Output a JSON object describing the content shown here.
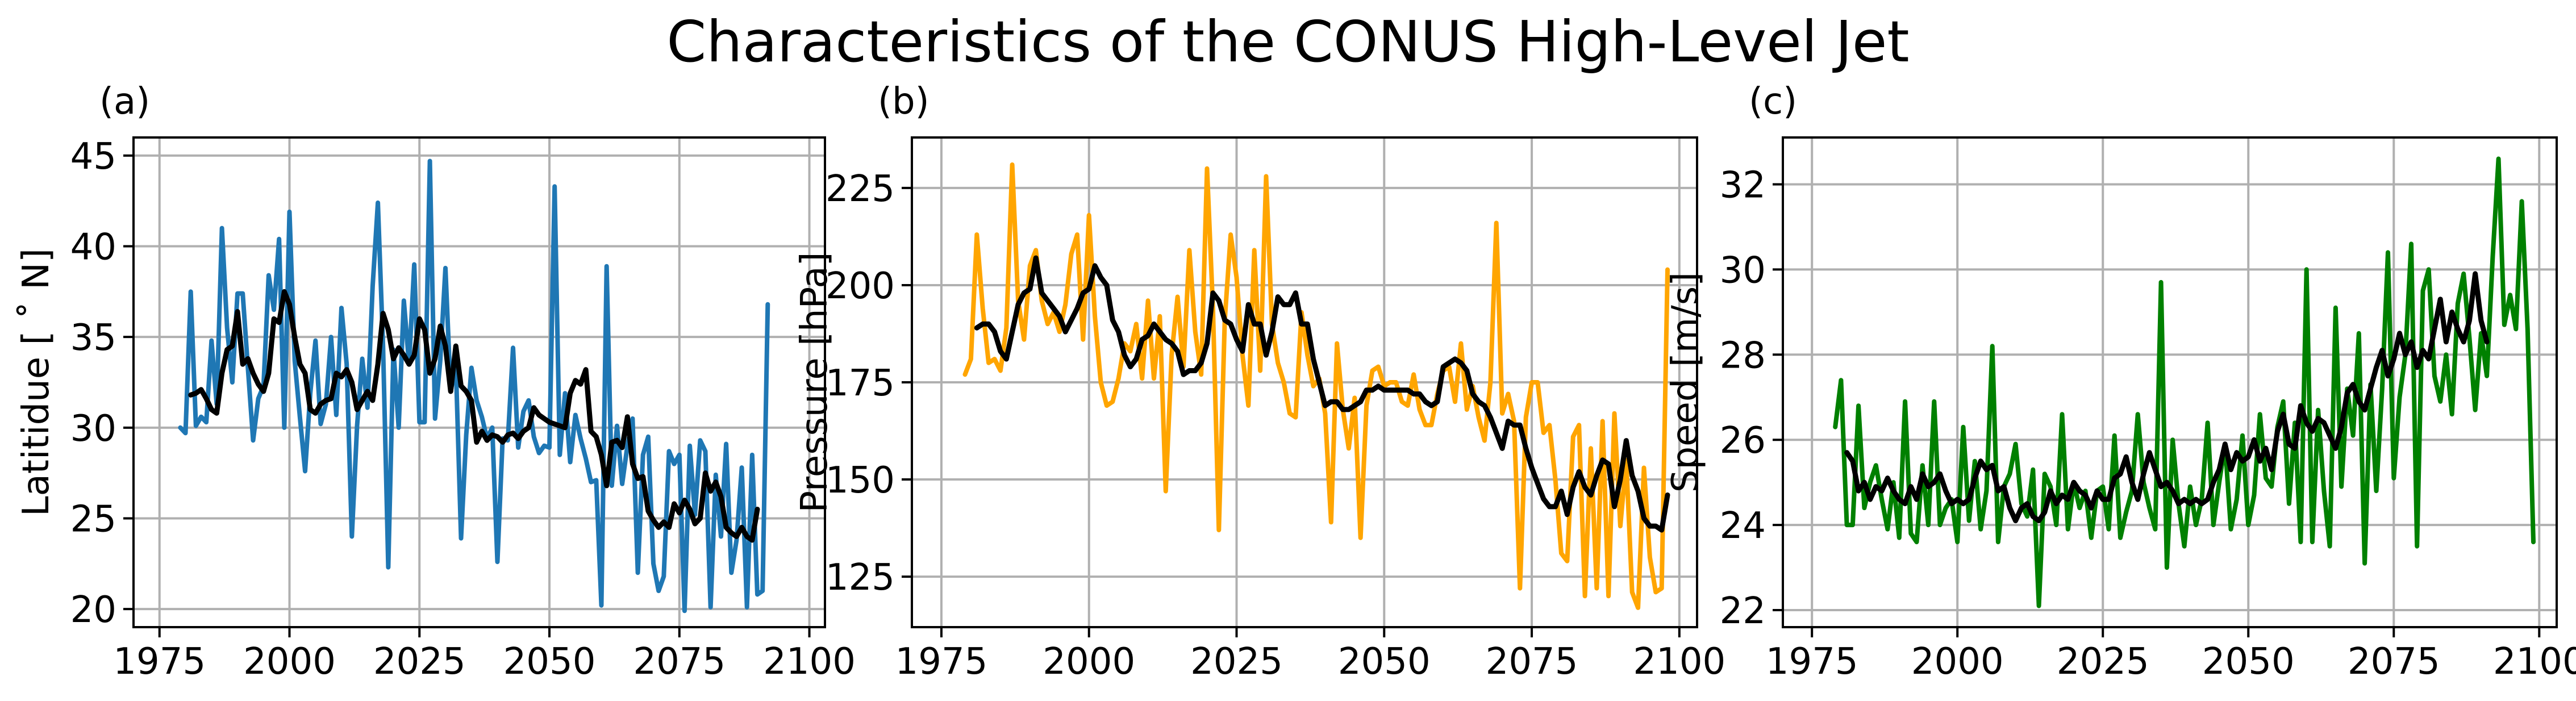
{
  "figure": {
    "title": "Characteristics of the CONUS High-Level Jet",
    "smooth_color": "#000000",
    "grid_color": "#b0b0b0"
  },
  "chart_data": [
    {
      "type": "line",
      "panel_label": "(a)",
      "title": "",
      "xlabel": "",
      "ylabel": "Latitidue [$^\\circ$N]",
      "ylabel_display": "Latitidue [ ˚ N]",
      "xlim": [
        1970,
        2103
      ],
      "ylim": [
        19,
        46
      ],
      "xticks": [
        1975,
        2000,
        2025,
        2050,
        2075,
        2100
      ],
      "yticks": [
        20,
        25,
        30,
        35,
        40,
        45
      ],
      "grid": true,
      "legend": "none",
      "series": [
        {
          "role": "raw",
          "color": "#1f77b4",
          "x_start": 1979,
          "values": [
            30.0,
            29.7,
            37.5,
            30.1,
            30.6,
            30.3,
            34.8,
            31.3,
            41.0,
            35.5,
            32.5,
            37.4,
            37.4,
            33.3,
            29.3,
            31.6,
            32.3,
            38.4,
            36.5,
            40.4,
            30.0,
            41.9,
            33.7,
            30.6,
            27.6,
            31.9,
            34.8,
            30.2,
            31.3,
            35.0,
            30.7,
            36.6,
            33.5,
            24.0,
            30.1,
            33.8,
            31.1,
            37.8,
            42.4,
            34.5,
            22.3,
            34.3,
            30.0,
            37.0,
            33.5,
            39.0,
            30.3,
            30.3,
            44.7,
            30.5,
            33.7,
            38.8,
            32.0,
            33.5,
            23.9,
            29.6,
            33.3,
            31.5,
            30.6,
            29.4,
            30.0,
            22.6,
            29.4,
            29.3,
            34.4,
            28.9,
            30.9,
            31.5,
            29.5,
            28.6,
            29.0,
            28.9,
            43.3,
            28.5,
            31.9,
            28.1,
            30.7,
            29.4,
            28.3,
            27.0,
            27.1,
            20.2,
            38.9,
            26.8,
            30.1,
            26.9,
            29.0,
            30.5,
            22.0,
            28.5,
            29.5,
            22.5,
            21.0,
            21.8,
            28.7,
            28.0,
            28.5,
            19.9,
            29.0,
            25.2,
            29.3,
            28.7,
            20.1,
            27.4,
            24.0,
            29.1,
            22.0,
            23.8,
            27.8,
            20.1,
            28.5,
            20.8,
            21.0,
            36.8
          ]
        },
        {
          "role": "smoothed",
          "color": "#000000",
          "x_start": 1981,
          "values": [
            31.8,
            31.9,
            32.1,
            31.6,
            31.0,
            30.8,
            33.0,
            34.3,
            34.5,
            36.4,
            33.5,
            33.8,
            33.0,
            32.4,
            32.0,
            33.0,
            36.0,
            35.8,
            37.5,
            36.8,
            35.0,
            33.5,
            33.0,
            31.0,
            30.8,
            31.3,
            31.5,
            31.6,
            33.0,
            32.8,
            33.2,
            32.5,
            31.0,
            31.5,
            32.0,
            31.5,
            33.5,
            36.3,
            35.4,
            33.8,
            34.4,
            34.0,
            33.5,
            34.0,
            36.0,
            35.4,
            33.0,
            33.8,
            35.6,
            34.5,
            32.0,
            34.5,
            32.3,
            32.0,
            31.5,
            29.2,
            29.8,
            29.3,
            29.6,
            29.5,
            29.2,
            29.6,
            29.7,
            29.4,
            29.8,
            30.0,
            31.1,
            30.7,
            30.5,
            30.3,
            30.2,
            30.1,
            30.0,
            31.9,
            32.6,
            32.4,
            33.2,
            29.8,
            29.5,
            28.5,
            26.8,
            29.2,
            29.3,
            28.9,
            30.6,
            28.0,
            27.2,
            27.3,
            25.4,
            24.9,
            24.5,
            24.8,
            24.5,
            25.8,
            25.3,
            26.0,
            25.5,
            24.7,
            25.0,
            27.5,
            26.5,
            27.0,
            26.2,
            24.5,
            24.2,
            24.0,
            24.5,
            24.0,
            23.8,
            25.5
          ]
        }
      ]
    },
    {
      "type": "line",
      "panel_label": "(b)",
      "title": "",
      "xlabel": "",
      "ylabel": "Pressure [hPa]",
      "xlim": [
        1970,
        2103
      ],
      "ylim": [
        112,
        238
      ],
      "xticks": [
        1975,
        2000,
        2025,
        2050,
        2075,
        2100
      ],
      "yticks": [
        125,
        150,
        175,
        200,
        225
      ],
      "grid": true,
      "legend": "none",
      "series": [
        {
          "role": "raw",
          "color": "#ffa500",
          "x_start": 1979,
          "values": [
            177,
            181,
            213,
            194,
            180,
            181,
            178,
            189,
            231,
            196,
            186,
            205,
            209,
            196,
            190,
            193,
            188,
            195,
            208,
            213,
            186,
            218,
            192,
            175,
            169,
            170,
            176,
            185,
            183,
            190,
            176,
            196,
            176,
            192,
            147,
            182,
            197,
            179,
            209,
            188,
            177,
            230,
            194,
            137,
            191,
            213,
            202,
            182,
            169,
            209,
            178,
            228,
            190,
            180,
            175,
            167,
            166,
            193,
            182,
            174,
            176,
            167,
            139,
            185,
            168,
            158,
            171,
            135,
            169,
            178,
            179,
            174,
            175,
            175,
            170,
            169,
            177,
            168,
            164,
            164,
            172,
            178,
            179,
            170,
            185,
            168,
            174,
            166,
            160,
            175,
            216,
            167,
            172,
            165,
            122,
            166,
            175,
            175,
            162,
            164,
            150,
            131,
            129,
            161,
            164,
            120,
            158,
            122,
            165,
            120,
            167,
            138,
            155,
            121,
            117,
            153,
            130,
            121,
            122,
            204
          ]
        },
        {
          "role": "smoothed",
          "color": "#000000",
          "x_start": 1981,
          "values": [
            189,
            190,
            190,
            188,
            183,
            181,
            188,
            195,
            198,
            199,
            207,
            198,
            196,
            194,
            192,
            188,
            191,
            194,
            198,
            199,
            205,
            202,
            200,
            191,
            188,
            182,
            179,
            181,
            186,
            187,
            190,
            188,
            186,
            185,
            183,
            177,
            178,
            178,
            180,
            185,
            198,
            196,
            191,
            190,
            186,
            183,
            195,
            190,
            190,
            182,
            188,
            197,
            195,
            195,
            198,
            190,
            190,
            181,
            175,
            169,
            170,
            170,
            168,
            168,
            169,
            170,
            173,
            173,
            174,
            173,
            173,
            173,
            173,
            173,
            172,
            172,
            170,
            169,
            170,
            179,
            180,
            181,
            180,
            178,
            172,
            170,
            169,
            166,
            162,
            158,
            165,
            164,
            164,
            158,
            153,
            149,
            145,
            143,
            143,
            147,
            141,
            148,
            152,
            148,
            146,
            151,
            155,
            154,
            143,
            150,
            160,
            151,
            147,
            140,
            138,
            138,
            137,
            146
          ]
        }
      ]
    },
    {
      "type": "line",
      "panel_label": "(c)",
      "title": "",
      "xlabel": "",
      "ylabel": "Speed [m/s]",
      "xlim": [
        1970,
        2103
      ],
      "ylim": [
        21.6,
        33.1
      ],
      "xticks": [
        1975,
        2000,
        2025,
        2050,
        2075,
        2100
      ],
      "yticks": [
        22,
        24,
        26,
        28,
        30,
        32
      ],
      "grid": true,
      "legend": "none",
      "series": [
        {
          "role": "raw",
          "color": "#008000",
          "x_start": 1979,
          "values": [
            26.3,
            27.4,
            24.0,
            24.0,
            26.8,
            24.4,
            25.0,
            25.4,
            24.6,
            23.9,
            25.0,
            23.7,
            26.9,
            23.8,
            23.6,
            25.4,
            24.0,
            26.9,
            24.0,
            24.4,
            24.6,
            23.6,
            26.3,
            24.1,
            25.5,
            23.9,
            24.8,
            28.2,
            23.6,
            24.9,
            25.2,
            25.9,
            24.5,
            24.2,
            25.3,
            22.1,
            25.2,
            24.9,
            24.0,
            26.6,
            23.9,
            25.0,
            24.4,
            24.8,
            23.7,
            24.8,
            24.9,
            23.9,
            26.1,
            23.7,
            24.3,
            24.8,
            26.6,
            25.0,
            24.4,
            23.9,
            29.7,
            23.0,
            26.0,
            24.5,
            23.5,
            24.9,
            24.0,
            24.6,
            26.4,
            24.0,
            25.0,
            25.9,
            23.9,
            24.6,
            26.1,
            24.0,
            24.7,
            26.6,
            25.1,
            24.9,
            26.3,
            26.9,
            24.5,
            26.4,
            23.6,
            30.0,
            23.6,
            26.7,
            24.8,
            23.5,
            29.1,
            24.9,
            27.2,
            26.1,
            28.5,
            23.1,
            27.3,
            24.8,
            27.2,
            30.4,
            25.1,
            27.0,
            28.0,
            30.6,
            23.5,
            29.5,
            30.0,
            27.5,
            26.9,
            28.0,
            26.6,
            29.2,
            29.9,
            28.4,
            26.7,
            28.5,
            27.5,
            30.3,
            32.6,
            28.7,
            29.4,
            28.6,
            31.6,
            28.6,
            23.6
          ]
        },
        {
          "role": "smoothed",
          "color": "#000000",
          "x_start": 1981,
          "values": [
            25.7,
            25.5,
            24.8,
            25.0,
            24.6,
            24.9,
            24.8,
            25.1,
            24.8,
            24.6,
            24.5,
            24.9,
            24.6,
            25.2,
            24.9,
            25.0,
            25.2,
            24.8,
            24.5,
            24.6,
            24.5,
            24.6,
            25.1,
            25.5,
            25.3,
            25.4,
            24.8,
            24.9,
            24.4,
            24.1,
            24.4,
            24.5,
            24.2,
            24.1,
            24.3,
            24.8,
            24.5,
            24.7,
            24.6,
            25.0,
            24.8,
            24.7,
            24.4,
            24.8,
            24.6,
            24.6,
            25.1,
            25.2,
            25.6,
            25.0,
            24.6,
            25.2,
            25.7,
            25.3,
            24.9,
            25.0,
            24.8,
            24.5,
            24.6,
            24.5,
            24.6,
            24.5,
            24.6,
            25.0,
            25.3,
            25.9,
            25.3,
            25.7,
            25.5,
            25.6,
            26.0,
            25.5,
            25.8,
            25.3,
            26.2,
            26.6,
            25.9,
            25.8,
            26.8,
            26.4,
            26.2,
            26.5,
            26.4,
            26.1,
            25.8,
            26.3,
            27.1,
            27.3,
            26.9,
            26.7,
            27.2,
            27.7,
            28.1,
            27.5,
            27.9,
            28.5,
            28.0,
            28.3,
            27.7,
            28.1,
            27.9,
            28.6,
            29.3,
            28.3,
            29.0,
            28.6,
            28.3,
            28.8,
            29.9,
            28.8,
            28.3
          ]
        }
      ]
    }
  ]
}
